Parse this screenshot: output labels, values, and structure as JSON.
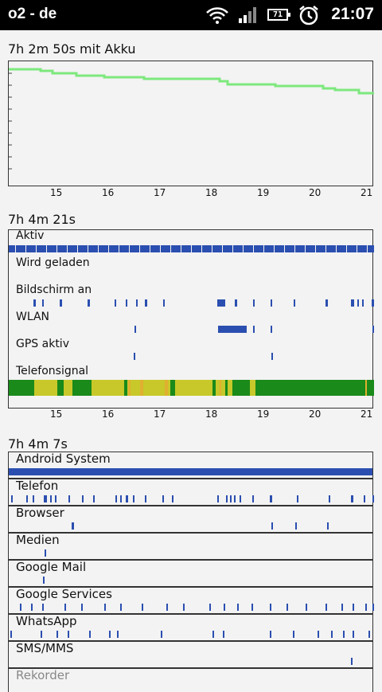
{
  "status_bar": {
    "carrier": "o2 - de",
    "battery_level": "71",
    "time": "21:07",
    "icons": [
      "wifi-icon",
      "signal-icon",
      "battery-icon",
      "alarm-icon"
    ]
  },
  "battery_chart": {
    "title": "7h 2m 50s mit Akku",
    "x_ticks": [
      "15",
      "16",
      "17",
      "18",
      "19",
      "20",
      "21"
    ],
    "line_color": "#7de87d"
  },
  "history_chart": {
    "title": "7h 4m 21s",
    "rows": [
      {
        "label": "Aktiv"
      },
      {
        "label": "Wird geladen"
      },
      {
        "label": "Bildschirm an"
      },
      {
        "label": "WLAN"
      },
      {
        "label": "GPS aktiv"
      },
      {
        "label": "Telefonsignal"
      }
    ],
    "x_ticks": [
      "15",
      "16",
      "17",
      "18",
      "19",
      "20",
      "21"
    ],
    "colors": {
      "blue": "#2b4fb0",
      "green": "#1a8a1a",
      "yellow": "#c8c82a"
    }
  },
  "apps_section": {
    "title": "7h 4m 7s",
    "apps": [
      {
        "label": "Android System"
      },
      {
        "label": "Telefon"
      },
      {
        "label": "Browser"
      },
      {
        "label": "Medien"
      },
      {
        "label": "Google Mail"
      },
      {
        "label": "Google Services"
      },
      {
        "label": "WhatsApp"
      },
      {
        "label": "SMS/MMS"
      },
      {
        "label": "Rekorder"
      }
    ]
  }
}
